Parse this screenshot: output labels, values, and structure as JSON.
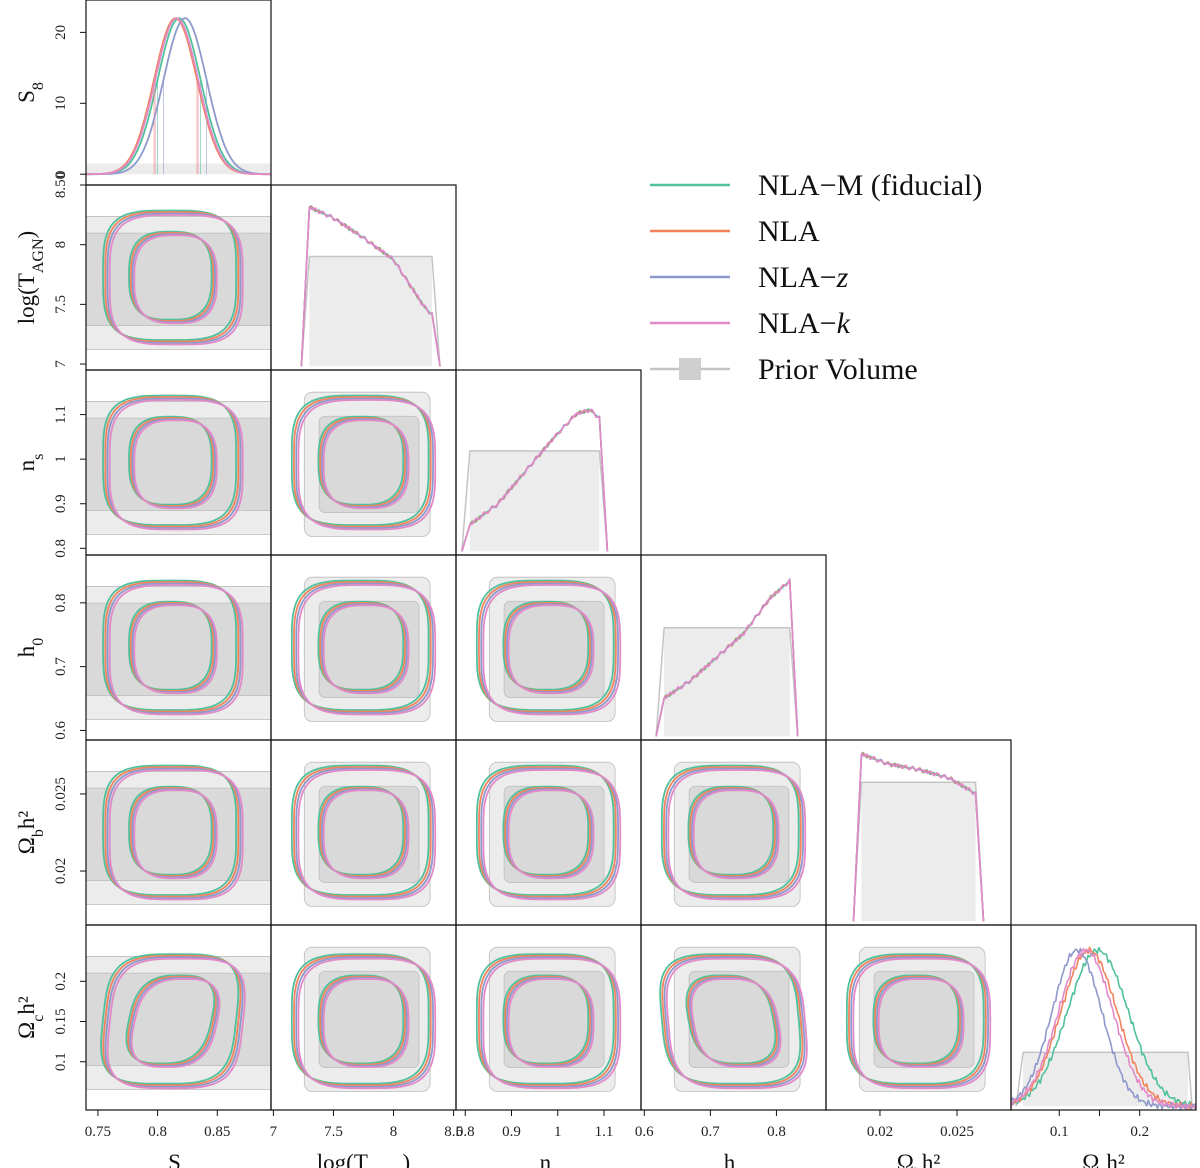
{
  "chart_data": {
    "type": "corner",
    "title": "",
    "parameters": [
      {
        "key": "S8",
        "label": "S",
        "sub": "8",
        "sup": "",
        "wrap": false,
        "lim": [
          0.74,
          0.895
        ],
        "ticks": [
          0.75,
          0.8,
          0.85
        ],
        "tick_labels": [
          "0.75",
          "0.8",
          "0.85"
        ]
      },
      {
        "key": "logT",
        "label": "log(T",
        "sub": "AGN",
        "sup": "",
        "post": ")",
        "wrap": true,
        "lim": [
          6.98,
          8.52
        ],
        "ticks": [
          7,
          7.5,
          8,
          8.5
        ],
        "tick_labels": [
          "7",
          "7.5",
          "8",
          "8.5"
        ]
      },
      {
        "key": "ns",
        "label": "n",
        "sub": "s",
        "sup": "",
        "wrap": false,
        "lim": [
          0.78,
          1.18
        ],
        "ticks": [
          0.8,
          0.9,
          1,
          1.1
        ],
        "tick_labels": [
          "0.8",
          "0.9",
          "1",
          "1.1"
        ]
      },
      {
        "key": "h0",
        "label": "h",
        "sub": "0",
        "sup": "",
        "wrap": false,
        "lim": [
          0.595,
          0.875
        ],
        "ticks": [
          0.6,
          0.7,
          0.8
        ],
        "tick_labels": [
          "0.6",
          "0.7",
          "0.8"
        ]
      },
      {
        "key": "Obh2",
        "label": "Ω",
        "sub": "b",
        "sup": "h²",
        "wrap": false,
        "lim": [
          0.0165,
          0.0285
        ],
        "ticks": [
          0.02,
          0.025
        ],
        "tick_labels": [
          "0.02",
          "0.025"
        ]
      },
      {
        "key": "Och2",
        "label": "Ω",
        "sub": "c",
        "sup": "h²",
        "wrap": false,
        "lim": [
          0.04,
          0.27
        ],
        "ticks": [
          0.1,
          0.15,
          0.2
        ],
        "tick_labels": [
          "0.1",
          "",
          "0.2"
        ]
      }
    ],
    "row_ticks": {
      "logT": {
        "lim": [
          6.95,
          8.5
        ],
        "ticks": [
          7,
          7.5,
          8,
          8.5
        ],
        "tick_labels": [
          "7",
          "7.5",
          "8",
          "8.50"
        ]
      },
      "ns": {
        "lim": [
          0.785,
          1.2
        ],
        "ticks": [
          0.8,
          0.9,
          1,
          1.1
        ],
        "tick_labels": [
          "0.8",
          "0.9",
          "1",
          "1.1"
        ]
      },
      "h0": {
        "lim": [
          0.585,
          0.875
        ],
        "ticks": [
          0.6,
          0.7,
          0.8
        ],
        "tick_labels": [
          "0.6",
          "0.7",
          "0.8"
        ]
      },
      "Obh2": {
        "lim": [
          0.0165,
          0.0285
        ],
        "ticks": [
          0.02,
          0.025
        ],
        "tick_labels": [
          "0.02",
          "0.025"
        ]
      },
      "Och2": {
        "lim": [
          0.04,
          0.27
        ],
        "ticks": [
          0.1,
          0.15,
          0.2
        ],
        "tick_labels": [
          "0.1",
          "0.15",
          "0.2"
        ]
      }
    },
    "s8_density_axis": {
      "lim": [
        -1,
        23
      ],
      "ticks": [
        0,
        10,
        20
      ],
      "tick_labels": [
        "0",
        "10",
        "20"
      ]
    },
    "series": [
      {
        "name": "NLA−M (fiducial)",
        "color": "#4fc19c"
      },
      {
        "name": "NLA",
        "color": "#f2845d"
      },
      {
        "name": "NLA−",
        "name_italic": "z",
        "color": "#8e99cc"
      },
      {
        "name": "NLA−",
        "name_italic": "k",
        "color": "#e28ac8"
      },
      {
        "name": "Prior Volume",
        "color": "#c4c4c4"
      }
    ],
    "s8_posterior": [
      {
        "series": "NLA−M (fiducial)",
        "mean": 0.818,
        "sigma": 0.018,
        "peak": 22
      },
      {
        "series": "NLA",
        "mean": 0.815,
        "sigma": 0.018,
        "peak": 22
      },
      {
        "series": "NLA−z",
        "mean": 0.823,
        "sigma": 0.018,
        "peak": 22
      },
      {
        "series": "NLA−k",
        "mean": 0.816,
        "sigma": 0.018,
        "peak": 22
      }
    ],
    "s8_prior_height": 1.5,
    "logT_posterior": {
      "x": [
        7.3,
        7.5,
        7.75,
        8.0,
        8.25,
        8.32
      ],
      "density": [
        8.4,
        8.3,
        8.12,
        7.92,
        7.5,
        7.42
      ],
      "prior_level": 7.95
    },
    "ns_posterior": {
      "x": [
        0.81,
        0.87,
        0.93,
        0.99,
        1.04,
        1.07,
        1.09
      ],
      "density": [
        0.85,
        0.9,
        0.98,
        1.06,
        1.12,
        1.13,
        1.11
      ],
      "prior_level": 1.03
    },
    "h0_posterior": {
      "x": [
        0.63,
        0.67,
        0.71,
        0.75,
        0.79,
        0.82
      ],
      "density": [
        0.65,
        0.68,
        0.72,
        0.76,
        0.82,
        0.85
      ],
      "prior_level": 0.77
    },
    "Obh2_posterior": {
      "x": [
        0.0188,
        0.0205,
        0.0225,
        0.0245,
        0.0262
      ],
      "density": [
        0.0283,
        0.0276,
        0.0272,
        0.0266,
        0.0255
      ],
      "prior_level": 0.0263
    },
    "Och2_posterior": [
      {
        "series": "NLA−M (fiducial)",
        "mean": 0.148,
        "sigma": 0.038
      },
      {
        "series": "NLA",
        "mean": 0.137,
        "sigma": 0.035
      },
      {
        "series": "NLA−z",
        "mean": 0.122,
        "sigma": 0.031
      },
      {
        "series": "NLA−k",
        "mean": 0.133,
        "sigma": 0.034
      }
    ],
    "Och2_prior_level": 0.14,
    "legend_position": "upper-right"
  }
}
